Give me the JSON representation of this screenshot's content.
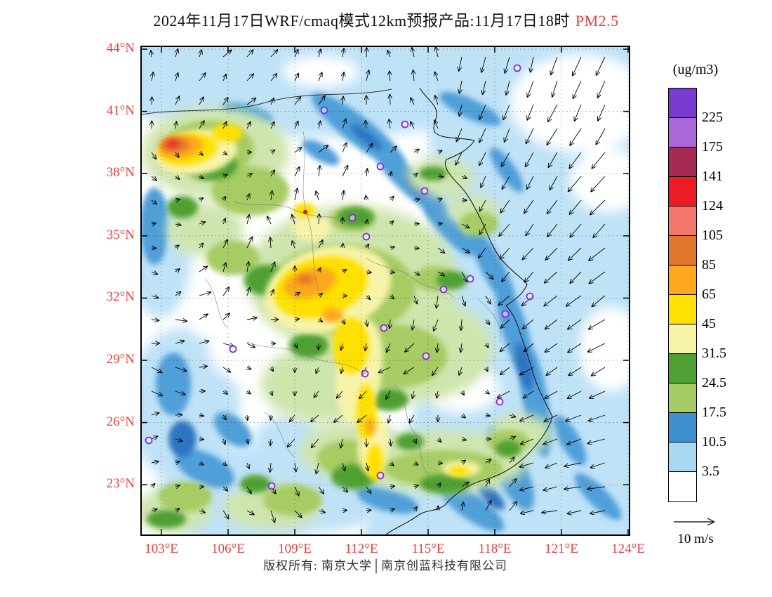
{
  "title": {
    "main": "2024年11月17日WRF/cmaq模式12km预报产品:11月17日18时",
    "highlight": "PM2.5"
  },
  "footer": {
    "copyright": "版权所有: 南京大学│南京创蓝科技有限公司"
  },
  "theme": {
    "label_red": "#e8403c",
    "ink": "#000000"
  },
  "chart_data": {
    "type": "heatmap",
    "title": "2024年11月17日WRF/cmaq模式12km预报产品:11月17日18时 PM2.5",
    "variable": "PM2.5",
    "units_label": "(ug/m3)",
    "lat_ticks": [
      "44°N",
      "41°N",
      "38°N",
      "35°N",
      "32°N",
      "29°N",
      "26°N",
      "23°N"
    ],
    "lon_ticks": [
      "103°E",
      "106°E",
      "109°E",
      "112°E",
      "115°E",
      "118°E",
      "121°E",
      "124°E"
    ],
    "lon_range": [
      103,
      124
    ],
    "lat_range": [
      23,
      44
    ],
    "grid": "dotted graticule every 3 degrees",
    "colorbar": {
      "levels": [
        "225",
        "175",
        "141",
        "124",
        "105",
        "85",
        "65",
        "45",
        "31.5",
        "24.5",
        "17.5",
        "10.5",
        "3.5"
      ],
      "colors_top_to_bottom": [
        "#7a3bd2",
        "#ab68da",
        "#a62a52",
        "#ec1c24",
        "#f4766c",
        "#e1772c",
        "#fca71e",
        "#ffe003",
        "#f7f3a9",
        "#4fa032",
        "#a5cc64",
        "#3e8fd0",
        "#a9d9f2",
        "#ffffff"
      ]
    },
    "wind_legend": "10 m/s",
    "hotspots": [
      {
        "lon": 104.3,
        "lat": 39.8,
        "level_ug_m3": "85-105"
      },
      {
        "lon": 110.7,
        "lat": 34.3,
        "level_ug_m3": "65-85"
      },
      {
        "lon": 112.8,
        "lat": 28.0,
        "level_ug_m3": "45-65"
      }
    ],
    "low_regions": "coastal seas and northeast corner mostly below 10.5",
    "city_markers": [
      [
        535,
        30
      ],
      [
        260,
        90
      ],
      [
        375,
        110
      ],
      [
        340,
        170
      ],
      [
        403,
        205
      ],
      [
        320,
        270
      ],
      [
        300,
        243
      ],
      [
        430,
        345
      ],
      [
        468,
        330
      ],
      [
        518,
        380
      ],
      [
        553,
        355
      ],
      [
        345,
        400
      ],
      [
        130,
        430
      ],
      [
        405,
        440
      ],
      [
        318,
        465
      ],
      [
        510,
        505
      ],
      [
        10,
        560
      ],
      [
        185,
        625
      ],
      [
        340,
        610
      ]
    ],
    "red_marker": [
      233,
      235
    ]
  }
}
